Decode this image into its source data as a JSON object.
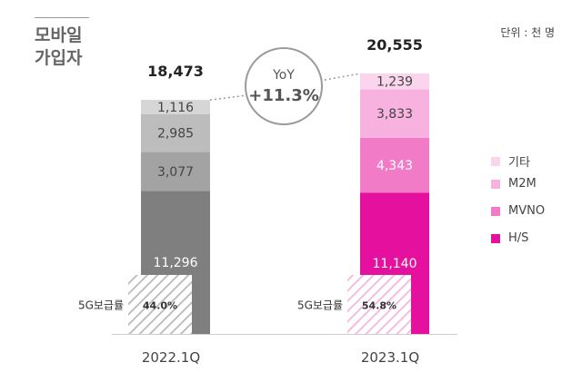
{
  "header": {
    "title_line1": "모바일",
    "title_line2": "가입자",
    "unit": "단위 : 천 명"
  },
  "yoy": {
    "label": "YoY",
    "value": "+11.3%"
  },
  "chart_data": {
    "type": "bar",
    "stacked": true,
    "categories": [
      "2022.1Q",
      "2023.1Q"
    ],
    "totals": [
      18473,
      20555
    ],
    "total_labels": [
      "18,473",
      "20,555"
    ],
    "series": [
      {
        "name": "H/S",
        "values": [
          11296,
          11140
        ],
        "labels": [
          "11,296",
          "11,140"
        ]
      },
      {
        "name": "MVNO",
        "values": [
          3077,
          4343
        ],
        "labels": [
          "3,077",
          "4,343"
        ]
      },
      {
        "name": "M2M",
        "values": [
          2985,
          3833
        ],
        "labels": [
          "2,985",
          "3,833"
        ]
      },
      {
        "name": "기타",
        "values": [
          1116,
          1239
        ],
        "labels": [
          "1,116",
          "1,239"
        ]
      }
    ],
    "fiveg_label": "5G보급률",
    "fiveg_rates": [
      0.44,
      0.548
    ],
    "fiveg_rate_labels": [
      "44.0%",
      "54.8%"
    ],
    "colors": {
      "2022.1Q": [
        "#7f7f7f",
        "#a3a3a3",
        "#bdbdbd",
        "#d6d6d6"
      ],
      "2023.1Q": [
        "#e5109e",
        "#f27bc7",
        "#f8b2df",
        "#fbd5ee"
      ]
    },
    "legend": [
      "기타",
      "M2M",
      "MVNO",
      "H/S"
    ],
    "legend_colors": [
      "#fbd5ee",
      "#f8b2df",
      "#f27bc7",
      "#e5109e"
    ],
    "legend_position": "right",
    "grid": false
  }
}
